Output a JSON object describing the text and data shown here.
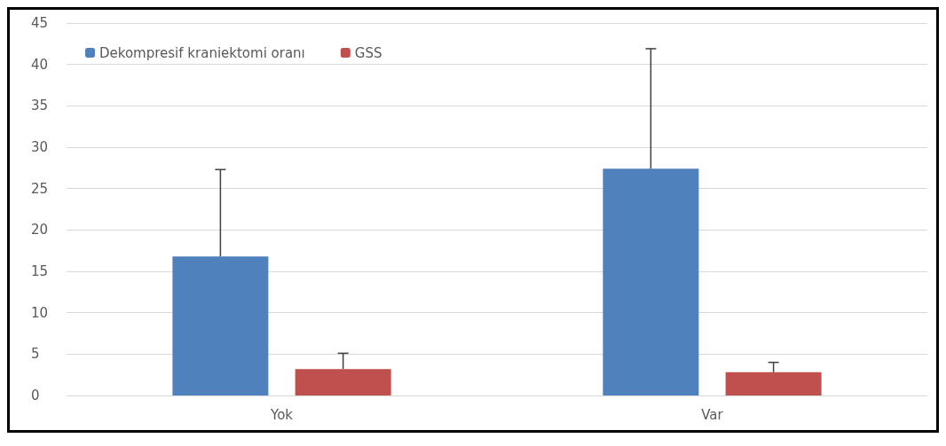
{
  "chart_data": {
    "type": "bar",
    "categories": [
      "Yok",
      "Var"
    ],
    "series": [
      {
        "name": "Dekompresif kraniektomi oranı",
        "color": "#4f81bd",
        "values": [
          16.8,
          27.4
        ],
        "errors": [
          [
            16.8,
            27.3
          ],
          [
            27.4,
            41.9
          ]
        ]
      },
      {
        "name": "GSS",
        "color": "#c0504d",
        "values": [
          3.2,
          2.8
        ],
        "errors": [
          [
            3.2,
            5.1
          ],
          [
            2.8,
            4.0
          ]
        ]
      }
    ],
    "ylim": [
      0,
      45
    ],
    "yticks": [
      0,
      5,
      10,
      15,
      20,
      25,
      30,
      35,
      40,
      45
    ],
    "grid": "y",
    "legend": "top left"
  }
}
